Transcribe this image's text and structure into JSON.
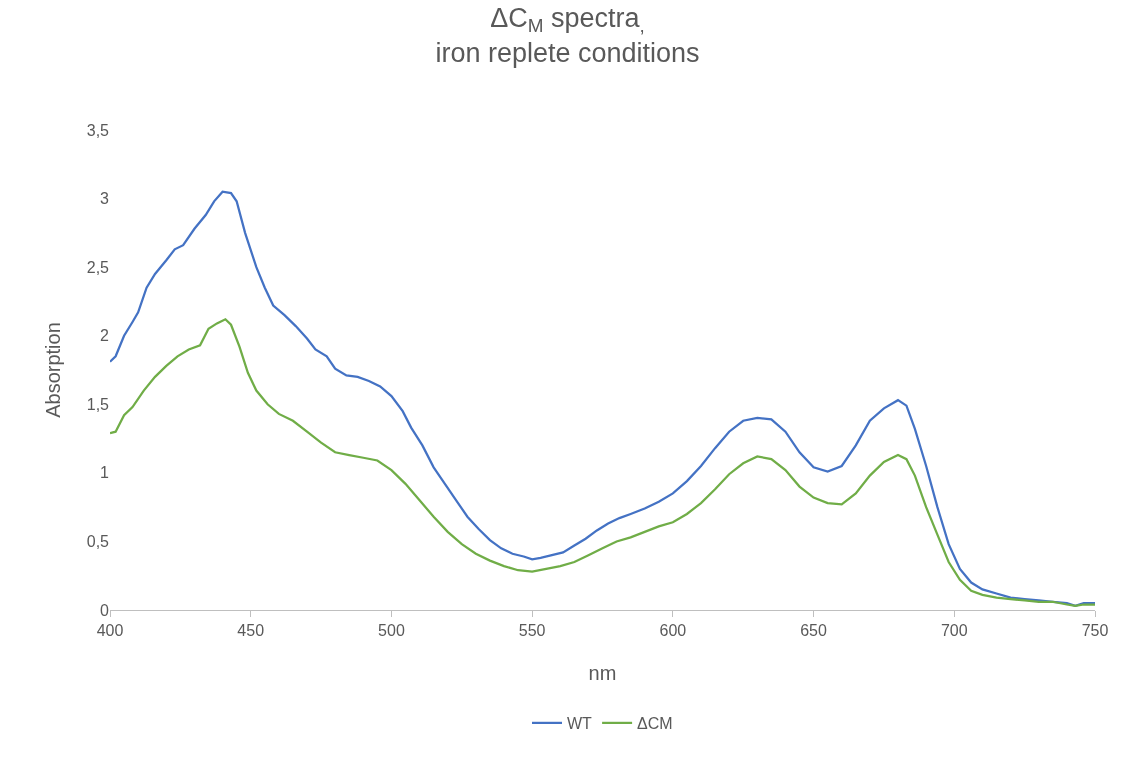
{
  "chart_data": {
    "type": "line",
    "title": "ΔC$_{M}$ spectra$_{,}$\niron replete conditions",
    "xlabel": "nm",
    "ylabel": "Absorption",
    "xlim": [
      400,
      750
    ],
    "xticks": [
      400,
      450,
      500,
      550,
      600,
      650,
      700,
      750
    ],
    "ylim": [
      0,
      3.5
    ],
    "yticks": [
      0,
      {
        "value": 0.5,
        "label": "0,5"
      },
      1,
      {
        "value": 1.5,
        "label": "1,5"
      },
      2,
      {
        "value": 2.5,
        "label": "2,5"
      },
      3,
      {
        "value": 3.5,
        "label": "3,5"
      }
    ],
    "grid": false,
    "legend": "bottom",
    "marker": "none",
    "line_style": "solid",
    "series": [
      {
        "name": "WT",
        "color": "#4472c4",
        "x": [
          400,
          402,
          405,
          408,
          410,
          413,
          416,
          420,
          423,
          426,
          430,
          434,
          437,
          440,
          443,
          445,
          448,
          452,
          455,
          458,
          462,
          466,
          470,
          473,
          477,
          480,
          484,
          488,
          492,
          496,
          500,
          504,
          507,
          511,
          515,
          519,
          523,
          527,
          531,
          535,
          539,
          543,
          547,
          550,
          553,
          557,
          561,
          565,
          569,
          573,
          577,
          581,
          585,
          590,
          595,
          600,
          605,
          610,
          615,
          620,
          625,
          630,
          635,
          640,
          645,
          650,
          655,
          660,
          665,
          670,
          675,
          680,
          683,
          686,
          690,
          694,
          698,
          702,
          706,
          710,
          715,
          720,
          725,
          730,
          735,
          740,
          743,
          746,
          750
        ],
        "values": [
          1.81,
          1.85,
          2.0,
          2.1,
          2.17,
          2.35,
          2.45,
          2.55,
          2.63,
          2.66,
          2.78,
          2.88,
          2.98,
          3.05,
          3.04,
          2.98,
          2.75,
          2.5,
          2.35,
          2.22,
          2.15,
          2.07,
          1.98,
          1.9,
          1.85,
          1.76,
          1.71,
          1.7,
          1.67,
          1.63,
          1.56,
          1.45,
          1.33,
          1.2,
          1.04,
          0.92,
          0.8,
          0.68,
          0.59,
          0.51,
          0.45,
          0.41,
          0.39,
          0.37,
          0.38,
          0.4,
          0.42,
          0.47,
          0.52,
          0.58,
          0.63,
          0.67,
          0.7,
          0.74,
          0.79,
          0.85,
          0.94,
          1.05,
          1.18,
          1.3,
          1.38,
          1.4,
          1.39,
          1.3,
          1.15,
          1.04,
          1.01,
          1.05,
          1.2,
          1.38,
          1.47,
          1.53,
          1.49,
          1.32,
          1.05,
          0.75,
          0.48,
          0.3,
          0.2,
          0.15,
          0.12,
          0.09,
          0.08,
          0.07,
          0.06,
          0.05,
          0.03,
          0.05,
          0.05
        ]
      },
      {
        "name": "ΔCM",
        "color": "#70ad47",
        "x": [
          400,
          402,
          405,
          408,
          412,
          416,
          420,
          424,
          428,
          432,
          435,
          438,
          441,
          443,
          446,
          449,
          452,
          456,
          460,
          465,
          470,
          475,
          480,
          485,
          490,
          495,
          500,
          505,
          510,
          515,
          520,
          525,
          530,
          535,
          540,
          545,
          550,
          555,
          560,
          565,
          570,
          575,
          580,
          585,
          590,
          595,
          600,
          605,
          610,
          615,
          620,
          625,
          630,
          635,
          640,
          645,
          650,
          655,
          660,
          665,
          670,
          675,
          680,
          683,
          686,
          690,
          694,
          698,
          702,
          706,
          710,
          715,
          720,
          725,
          730,
          735,
          740,
          743,
          746,
          750
        ],
        "values": [
          1.29,
          1.3,
          1.42,
          1.48,
          1.6,
          1.7,
          1.78,
          1.85,
          1.9,
          1.93,
          2.05,
          2.09,
          2.12,
          2.08,
          1.92,
          1.73,
          1.6,
          1.5,
          1.43,
          1.38,
          1.3,
          1.22,
          1.15,
          1.13,
          1.11,
          1.09,
          1.02,
          0.92,
          0.8,
          0.68,
          0.57,
          0.48,
          0.41,
          0.36,
          0.32,
          0.29,
          0.28,
          0.3,
          0.32,
          0.35,
          0.4,
          0.45,
          0.5,
          0.53,
          0.57,
          0.61,
          0.64,
          0.7,
          0.78,
          0.88,
          0.99,
          1.07,
          1.12,
          1.1,
          1.02,
          0.9,
          0.82,
          0.78,
          0.77,
          0.85,
          0.98,
          1.08,
          1.13,
          1.1,
          0.98,
          0.75,
          0.55,
          0.35,
          0.22,
          0.14,
          0.11,
          0.09,
          0.08,
          0.07,
          0.06,
          0.06,
          0.04,
          0.03,
          0.04,
          0.04
        ]
      }
    ]
  }
}
